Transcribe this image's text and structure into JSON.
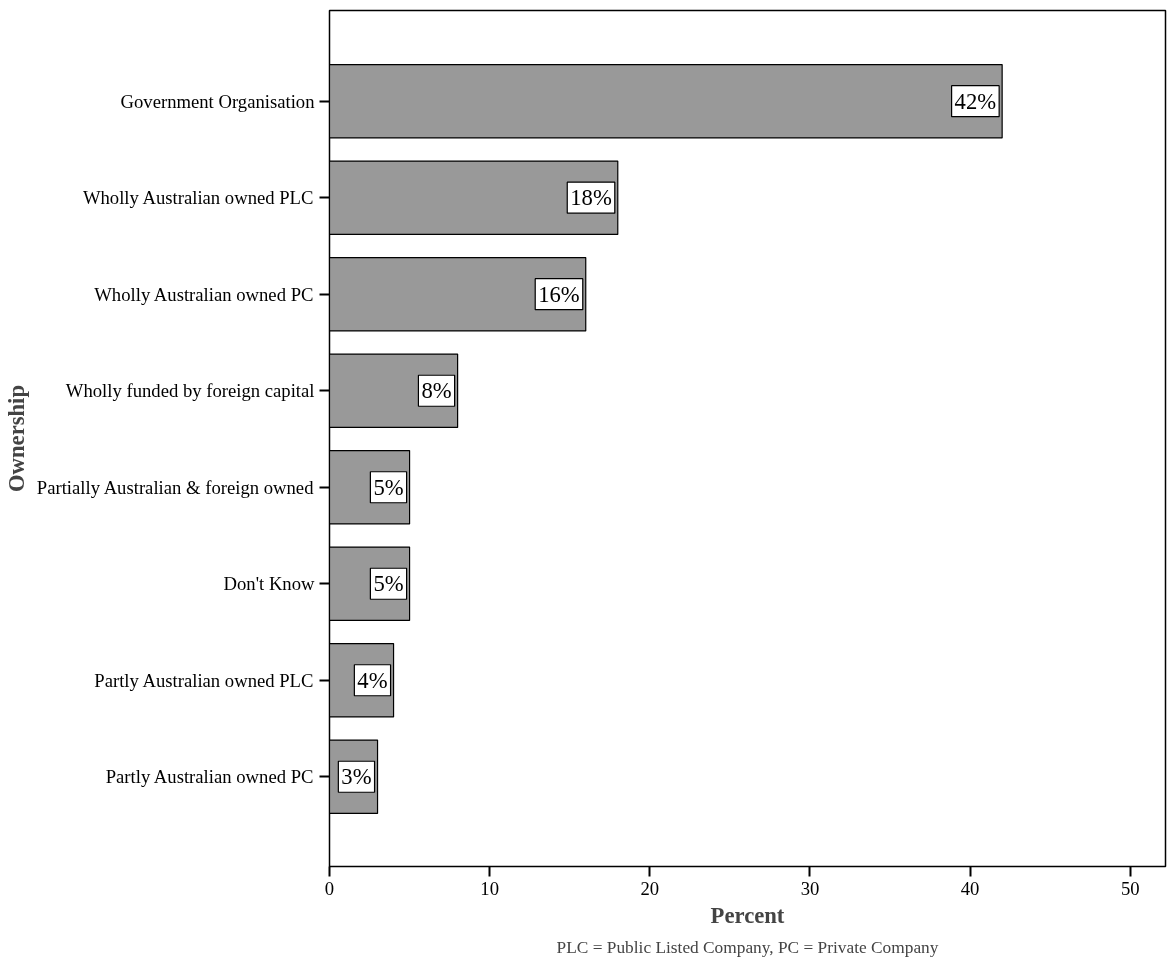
{
  "chart_data": {
    "type": "bar",
    "orientation": "horizontal",
    "xlabel": "Percent",
    "ylabel": "Ownership",
    "categories": [
      "Government Organisation",
      "Wholly Australian owned PLC",
      "Wholly Australian owned PC",
      "Wholly funded by foreign capital",
      "Partially Australian & foreign owned",
      "Don't Know",
      "Partly Australian owned PLC",
      "Partly Australian owned PC"
    ],
    "values": [
      42,
      18,
      16,
      8,
      5,
      5,
      4,
      3
    ],
    "value_labels": [
      "42%",
      "18%",
      "16%",
      "8%",
      "5%",
      "5%",
      "4%",
      "3%"
    ],
    "color": "#999999",
    "xlim": [
      0,
      52.2
    ],
    "xticks": [
      0,
      10,
      20,
      30,
      40,
      50
    ],
    "grid": false,
    "annotations": [
      "PLC = Public Listed Company, PC = Private Company"
    ]
  }
}
